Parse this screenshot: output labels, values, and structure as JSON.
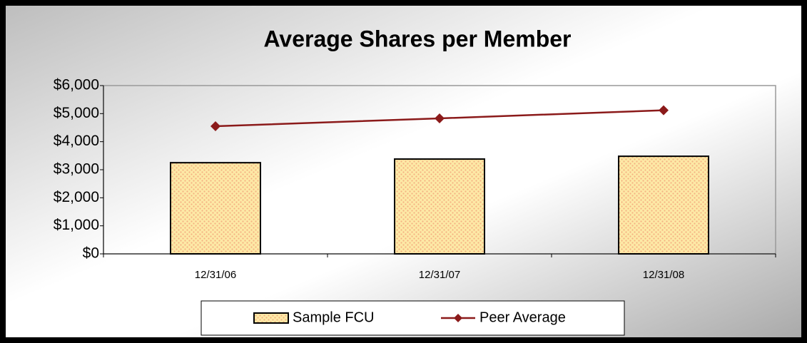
{
  "chart_data": {
    "type": "bar",
    "title": "Average Shares per Member",
    "categories": [
      "12/31/06",
      "12/31/07",
      "12/31/08"
    ],
    "series": [
      {
        "name": "Sample FCU",
        "type": "bar",
        "color": "#fde9a6",
        "values": [
          3250,
          3380,
          3480
        ]
      },
      {
        "name": "Peer Average",
        "type": "line",
        "color": "#8b1a1a",
        "values": [
          4550,
          4830,
          5120
        ]
      }
    ],
    "ylim": [
      0,
      6000
    ],
    "yticks": [
      {
        "value": 0,
        "label": "$0"
      },
      {
        "value": 1000,
        "label": "$1,000"
      },
      {
        "value": 2000,
        "label": "$2,000"
      },
      {
        "value": 3000,
        "label": "$3,000"
      },
      {
        "value": 4000,
        "label": "$4,000"
      },
      {
        "value": 5000,
        "label": "$5,000"
      },
      {
        "value": 6000,
        "label": "$6,000"
      }
    ],
    "grid": false,
    "legend": "bottom"
  }
}
